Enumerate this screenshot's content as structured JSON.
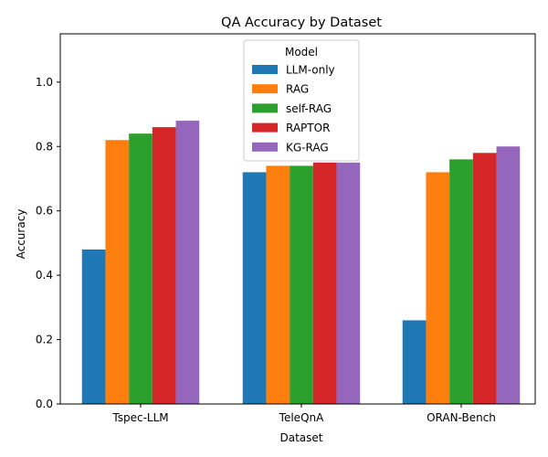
{
  "chart_data": {
    "type": "bar",
    "title": "QA Accuracy by Dataset",
    "xlabel": "Dataset",
    "ylabel": "Accuracy",
    "categories": [
      "Tspec-LLM",
      "TeleQnA",
      "ORAN-Bench"
    ],
    "ylim": [
      0,
      1.15
    ],
    "yticks": [
      0.0,
      0.2,
      0.4,
      0.6,
      0.8,
      1.0
    ],
    "ytick_labels": [
      "0.0",
      "0.2",
      "0.4",
      "0.6",
      "0.8",
      "1.0"
    ],
    "grid": false,
    "legend": {
      "title": "Model",
      "placement": "top-center"
    },
    "series": [
      {
        "name": "LLM-only",
        "color": "#1f77b4",
        "values": [
          0.48,
          0.72,
          0.26
        ]
      },
      {
        "name": "RAG",
        "color": "#ff7f0e",
        "values": [
          0.82,
          0.74,
          0.72
        ]
      },
      {
        "name": "self-RAG",
        "color": "#2ca02c",
        "values": [
          0.84,
          0.74,
          0.76
        ]
      },
      {
        "name": "RAPTOR",
        "color": "#d62728",
        "values": [
          0.86,
          0.75,
          0.78
        ]
      },
      {
        "name": "KG-RAG",
        "color": "#9467bd",
        "values": [
          0.88,
          0.75,
          0.8
        ]
      }
    ]
  }
}
